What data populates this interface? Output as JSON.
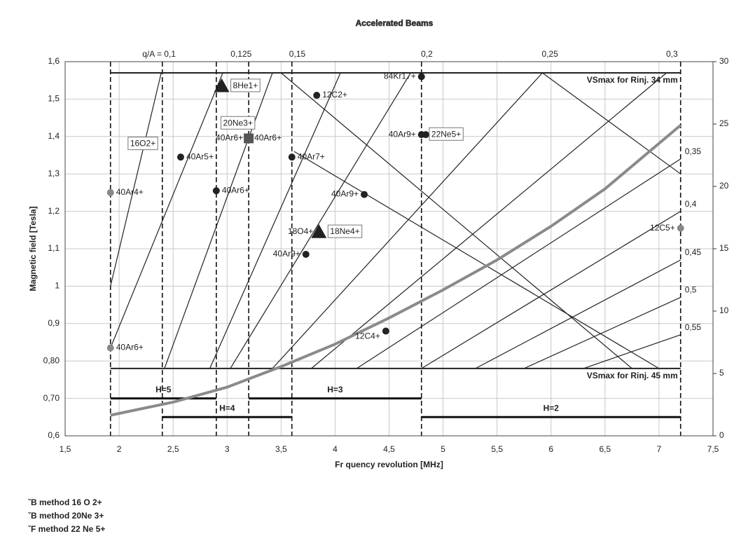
{
  "chart_data": {
    "type": "line",
    "title": "Accelerated Beams",
    "x_label": "Fr quency revolution [MHz]",
    "y_label": "Magnetic field [Tesla]",
    "xlim": [
      1.5,
      7.5
    ],
    "ylim": [
      0.6,
      1.6
    ],
    "y2lim": [
      0,
      30
    ],
    "grid": true,
    "xticks": [
      {
        "value": 1.5,
        "label": "1,5"
      },
      2,
      {
        "value": 2.5,
        "label": "2,5"
      },
      3,
      {
        "value": 3.5,
        "label": "3,5"
      },
      4,
      {
        "value": 4.5,
        "label": "4,5"
      },
      5,
      {
        "value": 5.5,
        "label": "5,5"
      },
      6,
      {
        "value": 6.5,
        "label": "6,5"
      },
      7,
      {
        "value": 7.5,
        "label": "7,5"
      }
    ],
    "yticks": [
      {
        "value": 0.6,
        "label": "0,6"
      },
      {
        "value": 0.7,
        "label": "0,70"
      },
      {
        "value": 0.8,
        "label": "0,80"
      },
      {
        "value": 0.9,
        "label": "0,9"
      },
      1,
      {
        "value": 1.1,
        "label": "1,1"
      },
      {
        "value": 1.2,
        "label": "1,2"
      },
      {
        "value": 1.3,
        "label": "1,3"
      },
      {
        "value": 1.4,
        "label": "1,4"
      },
      {
        "value": 1.5,
        "label": "1,5"
      },
      {
        "value": 1.6,
        "label": "1,6"
      }
    ],
    "y2ticks": [
      0,
      5,
      10,
      15,
      20,
      25,
      30
    ],
    "series": [
      {
        "color": "#8a8a8a",
        "x": [
          1.92,
          2.5,
          3,
          3.5,
          4,
          4.5,
          5,
          5.5,
          6,
          6.5,
          7.2
        ],
        "values": [
          0.655,
          0.69,
          0.73,
          0.785,
          0.845,
          0.915,
          0.99,
          1.07,
          1.16,
          1.26,
          1.43
        ]
      }
    ],
    "lines": [
      {
        "x": [
          1.92,
          2.39
        ],
        "values": [
          1.0,
          1.57
        ]
      },
      {
        "x": [
          1.92,
          2.96
        ],
        "values": [
          0.835,
          1.57
        ]
      },
      {
        "x": [
          2.42,
          3.42
        ],
        "values": [
          0.78,
          1.57
        ]
      },
      {
        "x": [
          2.84,
          4.05
        ],
        "values": [
          0.78,
          1.57
        ]
      },
      {
        "x": [
          3.03,
          4.7
        ],
        "values": [
          0.78,
          1.57
        ]
      },
      {
        "x": [
          3.42,
          5.92
        ],
        "values": [
          0.78,
          1.57
        ]
      },
      {
        "x": [
          3.78,
          7.07
        ],
        "values": [
          0.78,
          1.57
        ]
      },
      {
        "x": [
          4.2,
          7.2
        ],
        "values": [
          0.78,
          1.34
        ]
      },
      {
        "x": [
          4.8,
          7.2
        ],
        "values": [
          0.78,
          1.2
        ]
      },
      {
        "x": [
          5.3,
          7.2
        ],
        "values": [
          0.78,
          1.07
        ]
      },
      {
        "x": [
          5.75,
          7.2
        ],
        "values": [
          0.78,
          0.97
        ]
      },
      {
        "x": [
          6.3,
          7.2
        ],
        "values": [
          0.78,
          0.87
        ]
      },
      {
        "x": [
          3.5,
          6.75
        ],
        "values": [
          1.57,
          0.78
        ]
      },
      {
        "x": [
          3.62,
          7.0
        ],
        "values": [
          1.36,
          0.78
        ]
      },
      {
        "x": [
          5.92,
          7.2
        ],
        "values": [
          1.57,
          1.3
        ]
      }
    ],
    "vlines": [
      1.92,
      2.4,
      2.9,
      3.2,
      3.6,
      4.8,
      7.2
    ],
    "limits": [
      {
        "label": "VSmax for Rinj. 34 mm",
        "value": 1.57,
        "x": [
          1.92,
          7.2
        ]
      },
      {
        "label": "VSmax for Rinj. 45 mm",
        "value": 0.78,
        "x": [
          1.92,
          7.2
        ]
      }
    ],
    "harmonics": [
      {
        "label": "H=5",
        "value": 0.7,
        "x": [
          1.92,
          2.9
        ],
        "color": "#888888"
      },
      {
        "label": "H=4",
        "value": 0.65,
        "x": [
          2.4,
          3.6
        ],
        "color": "#222222"
      },
      {
        "label": "H=3",
        "value": 0.7,
        "x": [
          3.2,
          4.8
        ],
        "color": "#888888"
      },
      {
        "label": "H=2",
        "value": 0.65,
        "x": [
          4.8,
          7.2
        ],
        "color": "#888888"
      }
    ],
    "qa_top": [
      {
        "label": "q/A = 0,1",
        "x": 2.37
      },
      {
        "label": "0,125",
        "x": 3.13
      },
      {
        "label": "0,15",
        "x": 3.65
      },
      {
        "label": "0,2",
        "x": 4.85
      },
      {
        "label": "0,25",
        "x": 5.99
      },
      {
        "label": "0,3",
        "x": 7.12
      }
    ],
    "qa_right": [
      {
        "label": "0,35",
        "y": 1.34
      },
      {
        "label": "0,4",
        "y": 1.2
      },
      {
        "label": "0,45",
        "y": 1.07
      },
      {
        "label": "0,5",
        "y": 0.97
      },
      {
        "label": "0,55",
        "y": 0.87
      }
    ],
    "points": [
      {
        "x": 1.92,
        "y": 1.25,
        "marker": "circle",
        "color": "#888888",
        "right": "40Ar4+"
      },
      {
        "x": 1.92,
        "y": 0.835,
        "marker": "circle",
        "color": "#888888",
        "right": "40Ar6+"
      },
      {
        "x": 2.57,
        "y": 1.345,
        "marker": "circle",
        "color": "#222222",
        "right": "40Ar5+"
      },
      {
        "x": 2.9,
        "y": 1.255,
        "marker": "circle",
        "color": "#222222",
        "right": "40Ar6+"
      },
      {
        "x": 2.95,
        "y": 1.535,
        "marker": "triangle",
        "color": "#222222",
        "right": "8He1+",
        "boxed": true
      },
      {
        "x": 3.2,
        "y": 1.395,
        "marker": "square",
        "color": "#555555",
        "left": "40Ar6+",
        "right": "40Ar6+"
      },
      {
        "x": 3.83,
        "y": 1.51,
        "marker": "circle",
        "color": "#222222",
        "right": "12C2+"
      },
      {
        "x": 3.6,
        "y": 1.345,
        "marker": "circle",
        "color": "#222222",
        "right": "40Ar7+"
      },
      {
        "x": 4.27,
        "y": 1.245,
        "marker": "circle",
        "color": "#222222",
        "left": "40Ar9+"
      },
      {
        "x": 3.85,
        "y": 1.145,
        "marker": "triangle",
        "color": "#222222",
        "left": "18O4+",
        "right": "18Ne4+",
        "boxed": true
      },
      {
        "x": 3.73,
        "y": 1.085,
        "marker": "circle",
        "color": "#222222",
        "left": "40Ar9+"
      },
      {
        "x": 4.47,
        "y": 0.88,
        "marker": "circle",
        "color": "#222222",
        "left": "12C4+"
      },
      {
        "x": 4.8,
        "y": 1.56,
        "marker": "circle",
        "color": "#222222",
        "left": "84Kr17+"
      },
      {
        "x": 4.8,
        "y": 1.405,
        "marker": "circle",
        "color": "#222222",
        "left": "40Ar9+"
      },
      {
        "x": 4.84,
        "y": 1.405,
        "marker": "circle",
        "color": "#222222",
        "right": "22Ne5+",
        "boxed": true
      },
      {
        "x": 7.2,
        "y": 1.155,
        "marker": "circle",
        "color": "#888888",
        "left": "12C5+"
      }
    ],
    "annotations": [
      {
        "text": "16O2+",
        "x": 2.22,
        "y": 1.38
      },
      {
        "text": "20Ne3+",
        "x": 3.1,
        "y": 1.435
      }
    ],
    "footer": [
      "ˇB method 16 O 2+",
      "ˇB method  20Ne 3+",
      "ˇF method  22 Ne 5+"
    ]
  }
}
